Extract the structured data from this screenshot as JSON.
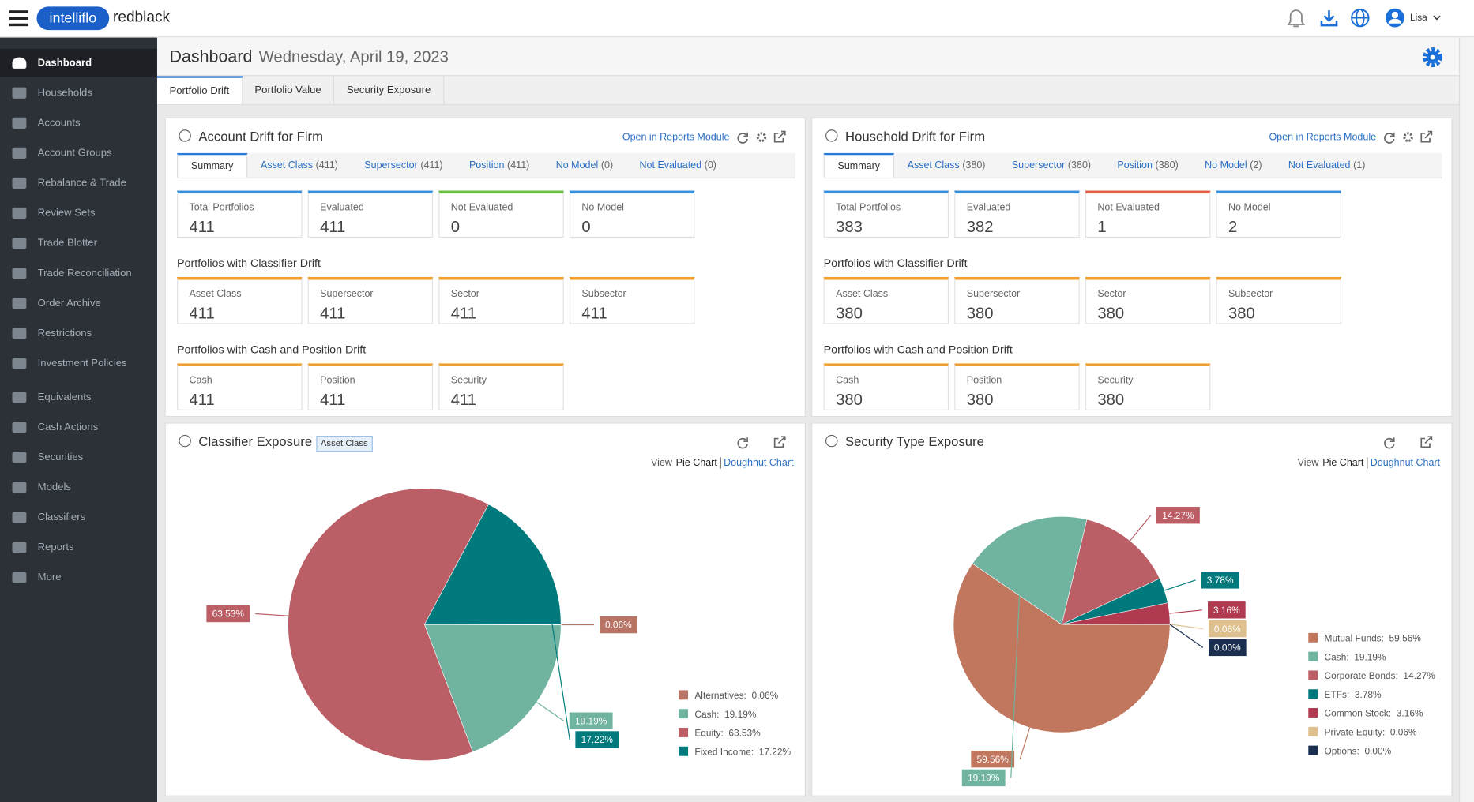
{
  "header": {
    "brand_1": "intelliflo",
    "brand_2": "redblack",
    "user": "Lisa"
  },
  "sidebar": {
    "items": [
      "Dashboard",
      "Households",
      "Accounts",
      "Account Groups",
      "Rebalance & Trade",
      "Review Sets",
      "Trade Blotter",
      "Trade Reconciliation",
      "Order Archive",
      "Restrictions",
      "Investment Policies",
      "Equivalents",
      "Cash Actions",
      "Securities",
      "Models",
      "Classifiers",
      "Reports",
      "More"
    ]
  },
  "page": {
    "title": "Dashboard",
    "date": "Wednesday, April 19, 2023",
    "tabs": [
      "Portfolio Drift",
      "Portfolio Value",
      "Security Exposure"
    ]
  },
  "drift_panels": [
    {
      "title": "Account Drift for Firm",
      "link": "Open in Reports Module",
      "tabs": [
        {
          "label": "Summary"
        },
        {
          "label": "Asset Class",
          "count": "(411)"
        },
        {
          "label": "Supersector",
          "count": "(411)"
        },
        {
          "label": "Position",
          "count": "(411)"
        },
        {
          "label": "No Model",
          "count": "(0)"
        },
        {
          "label": "Not Evaluated",
          "count": "(0)"
        }
      ],
      "sections": [
        {
          "cards": [
            {
              "label": "Total Portfolios",
              "value": 411,
              "color": "#3a8fd8"
            },
            {
              "label": "Evaluated",
              "value": 411,
              "color": "#3a8fd8"
            },
            {
              "label": "Not Evaluated",
              "value": 0,
              "color": "#6cc04a"
            },
            {
              "label": "No Model",
              "value": 0,
              "color": "#3a8fd8"
            }
          ]
        },
        {
          "heading": "Portfolios with Classifier Drift",
          "cards": [
            {
              "label": "Asset Class",
              "value": 411,
              "color": "#f0a030"
            },
            {
              "label": "Supersector",
              "value": 411,
              "color": "#f0a030"
            },
            {
              "label": "Sector",
              "value": 411,
              "color": "#f0a030"
            },
            {
              "label": "Subsector",
              "value": 411,
              "color": "#f0a030"
            }
          ]
        },
        {
          "heading": "Portfolios with Cash and Position Drift",
          "cards": [
            {
              "label": "Cash",
              "value": 411,
              "color": "#f0a030"
            },
            {
              "label": "Position",
              "value": 411,
              "color": "#f0a030"
            },
            {
              "label": "Security",
              "value": 411,
              "color": "#f0a030"
            }
          ]
        }
      ]
    },
    {
      "title": "Household Drift for Firm",
      "link": "Open in Reports Module",
      "tabs": [
        {
          "label": "Summary"
        },
        {
          "label": "Asset Class",
          "count": "(380)"
        },
        {
          "label": "Supersector",
          "count": "(380)"
        },
        {
          "label": "Position",
          "count": "(380)"
        },
        {
          "label": "No Model",
          "count": "(2)"
        },
        {
          "label": "Not Evaluated",
          "count": "(1)"
        }
      ],
      "sections": [
        {
          "cards": [
            {
              "label": "Total Portfolios",
              "value": 383,
              "color": "#3a8fd8"
            },
            {
              "label": "Evaluated",
              "value": 382,
              "color": "#3a8fd8"
            },
            {
              "label": "Not Evaluated",
              "value": 1,
              "color": "#e0604a"
            },
            {
              "label": "No Model",
              "value": 2,
              "color": "#3a8fd8"
            }
          ]
        },
        {
          "heading": "Portfolios with Classifier Drift",
          "cards": [
            {
              "label": "Asset Class",
              "value": 380,
              "color": "#f0a030"
            },
            {
              "label": "Supersector",
              "value": 380,
              "color": "#f0a030"
            },
            {
              "label": "Sector",
              "value": 380,
              "color": "#f0a030"
            },
            {
              "label": "Subsector",
              "value": 380,
              "color": "#f0a030"
            }
          ]
        },
        {
          "heading": "Portfolios with Cash and Position Drift",
          "cards": [
            {
              "label": "Cash",
              "value": 380,
              "color": "#f0a030"
            },
            {
              "label": "Position",
              "value": 380,
              "color": "#f0a030"
            },
            {
              "label": "Security",
              "value": 380,
              "color": "#f0a030"
            }
          ]
        }
      ]
    }
  ],
  "exposure_panels": [
    {
      "title": "Classifier Exposure",
      "badge": "Asset Class",
      "view": {
        "label": "View",
        "options": [
          "Pie Chart",
          "Doughnut Chart"
        ]
      },
      "chart_data": {
        "type": "pie",
        "categories": [
          "Alternatives",
          "Cash",
          "Equity",
          "Fixed Income"
        ],
        "values": [
          0.06,
          19.19,
          63.53,
          17.22
        ],
        "value_labels": [
          "0.06%",
          "19.19%",
          "63.53%",
          "17.22%"
        ],
        "legend": [
          "Alternatives:  0.06%",
          "Cash:  19.19%",
          "Equity:  63.53%",
          "Fixed Income:  17.22%"
        ],
        "colors": [
          "#b87464",
          "#6fb3a0",
          "#bb5e66",
          "#007a7d"
        ]
      }
    },
    {
      "title": "Security Type Exposure",
      "view": {
        "label": "View",
        "options": [
          "Pie Chart",
          "Doughnut Chart"
        ]
      },
      "chart_data": {
        "type": "pie",
        "categories": [
          "Mutual Funds",
          "Cash",
          "Corporate Bonds",
          "ETFs",
          "Common Stock",
          "Private Equity",
          "Options"
        ],
        "values": [
          59.56,
          19.19,
          14.27,
          3.78,
          3.16,
          0.06,
          0.0
        ],
        "value_labels": [
          "59.56%",
          "19.19%",
          "14.27%",
          "3.78%",
          "3.16%",
          "0.06%",
          "0.00%"
        ],
        "legend": [
          "Mutual Funds:  59.56%",
          "Cash:  19.19%",
          "Corporate Bonds:  14.27%",
          "ETFs:  3.78%",
          "Common Stock:  3.16%",
          "Private Equity:  0.06%",
          "Options:  0.00%"
        ],
        "colors": [
          "#c0775e",
          "#6fb3a0",
          "#bb5e66",
          "#007a7d",
          "#b03a50",
          "#ddc08e",
          "#1a2e50"
        ]
      }
    }
  ]
}
